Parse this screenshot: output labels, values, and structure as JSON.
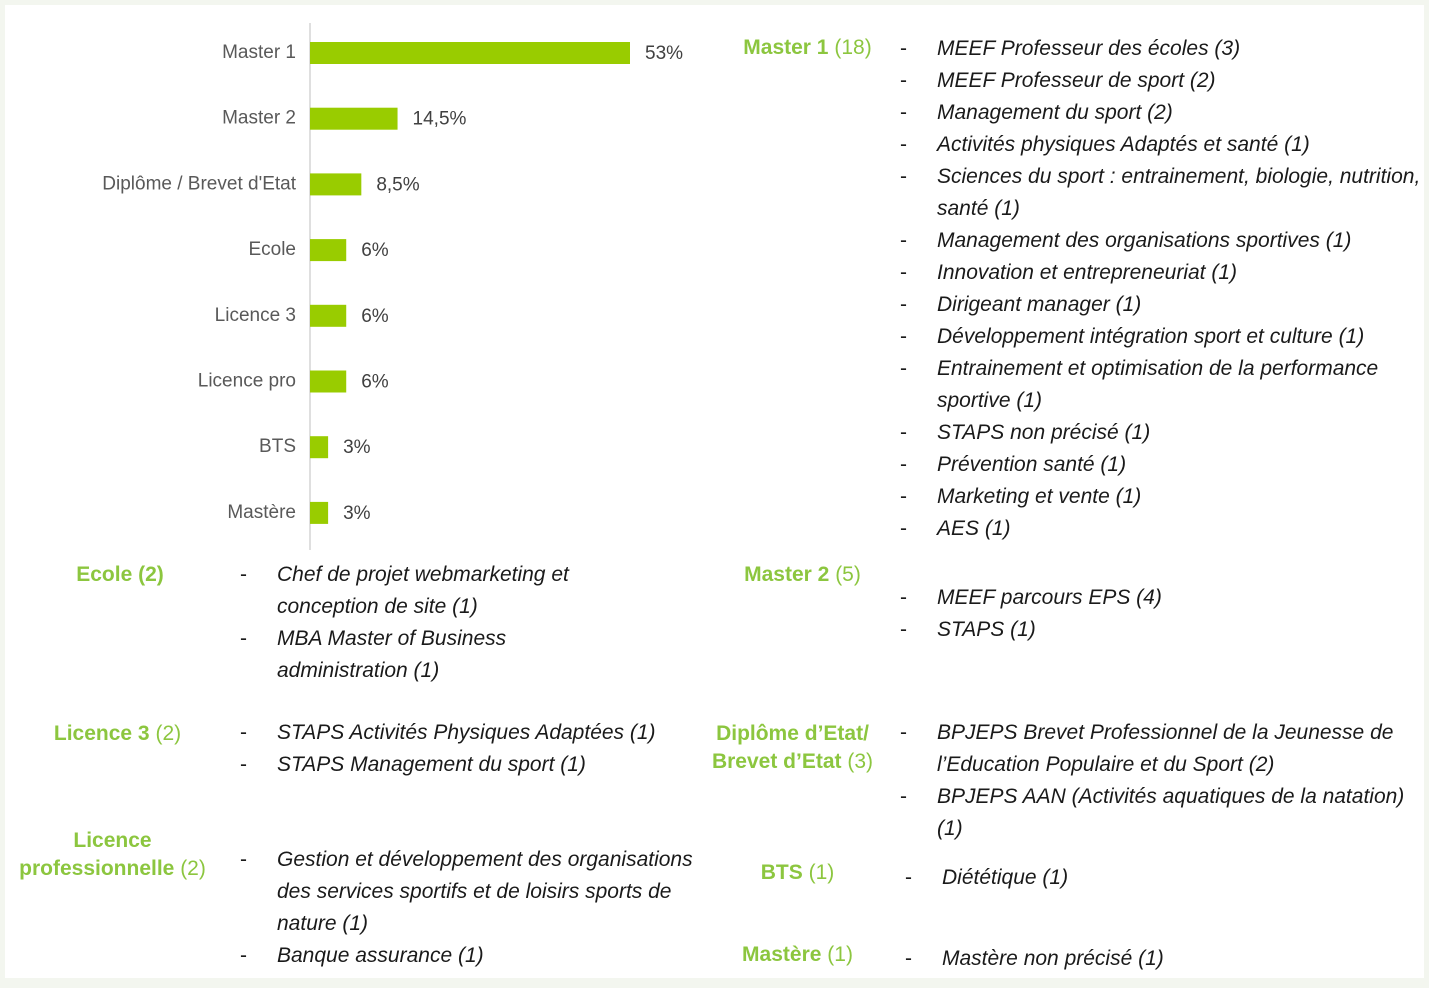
{
  "chart_data": {
    "type": "bar",
    "orientation": "horizontal",
    "color": "#99cc00",
    "categories": [
      "Master 1",
      "Master 2",
      "Diplôme / Brevet d'Etat",
      "Ecole",
      "Licence 3",
      "Licence pro",
      "BTS",
      "Mastère"
    ],
    "values": [
      53,
      14.5,
      8.5,
      6,
      6,
      6,
      3,
      3
    ],
    "value_labels": [
      "53%",
      "14,5%",
      "8,5%",
      "6%",
      "6%",
      "6%",
      "3%",
      "3%"
    ]
  },
  "sections": [
    {
      "label": "Master 1",
      "count": "(18)",
      "items": [
        "MEEF Professeur des écoles (3)",
        "MEEF Professeur de sport (2)",
        "Management du sport (2)",
        "Activités physiques Adaptés et santé (1)",
        "Sciences du sport : entrainement, biologie, nutrition, santé (1)",
        "Management des organisations sportives (1)",
        "Innovation et entrepreneuriat (1)",
        "Dirigeant manager (1)",
        "Développement intégration sport et culture (1)",
        "Entrainement et optimisation de la performance sportive (1)",
        "STAPS non précisé (1)",
        "Prévention santé (1)",
        "Marketing et vente (1)",
        "AES (1)"
      ]
    },
    {
      "label": "Master 2",
      "count": "(5)",
      "items": [
        "MEEF parcours EPS (4)",
        "STAPS (1)"
      ]
    },
    {
      "label": "Diplôme d’Etat/ Brevet d’Etat",
      "count": "(3)",
      "items": [
        "BPJEPS Brevet Professionnel de la Jeunesse de l’Education Populaire et du Sport (2)",
        "BPJEPS AAN (Activités aquatiques de la natation) (1)"
      ]
    },
    {
      "label": "BTS",
      "count": "(1)",
      "items": [
        "Diététique (1)"
      ]
    },
    {
      "label": "Mastère",
      "count": "(1)",
      "items": [
        "Mastère non précisé (1)"
      ]
    },
    {
      "label": "Ecole (2)",
      "items": [
        "Chef de projet webmarketing et conception de site (1)",
        "MBA Master of Business administration (1)"
      ]
    },
    {
      "label": "Licence 3",
      "count": "(2)",
      "items": [
        "STAPS Activités Physiques Adaptées (1)",
        "STAPS Management du sport (1)"
      ]
    },
    {
      "label": "Licence professionnelle",
      "count": "(2)",
      "items": [
        "Gestion et développement des organisations des services sportifs et de loisirs sports de nature (1)",
        "Banque assurance (1)"
      ]
    }
  ]
}
